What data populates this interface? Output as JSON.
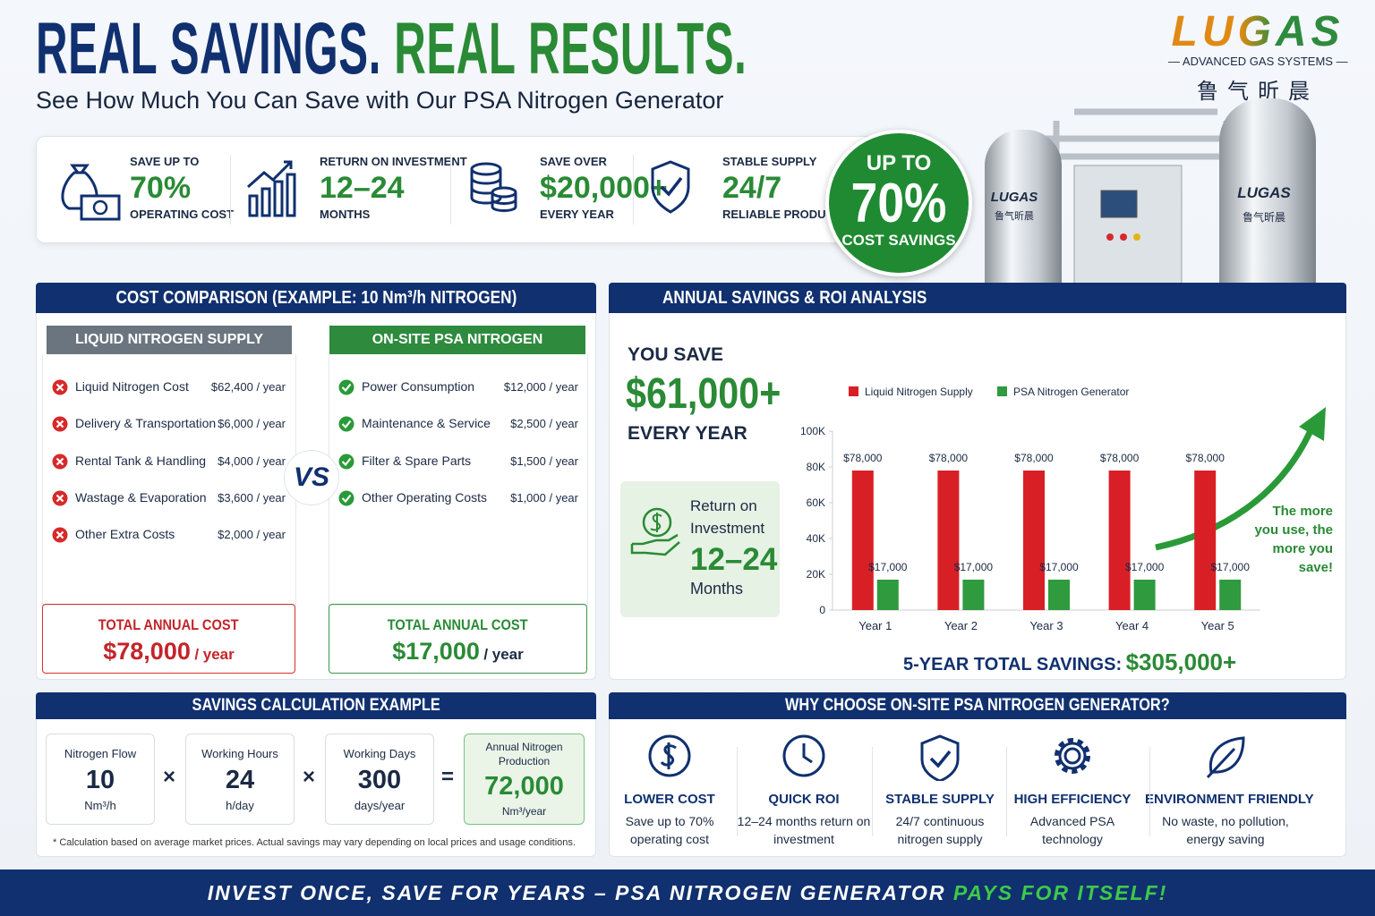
{
  "header": {
    "title_part1": "REAL SAVINGS.",
    "title_part2": "REAL RESULTS.",
    "subtitle": "See How Much You Can Save with Our PSA Nitrogen Generator"
  },
  "logo": {
    "name": "LUGAS",
    "tagline": "ADVANCED GAS SYSTEMS",
    "chinese": "鲁气昕晨"
  },
  "highlights": [
    {
      "label": "SAVE UP TO",
      "value": "70%",
      "caption": "OPERATING COST"
    },
    {
      "label": "RETURN ON INVESTMENT",
      "value": "12–24",
      "caption": "MONTHS"
    },
    {
      "label": "SAVE OVER",
      "value": "$20,000+",
      "caption": "EVERY YEAR"
    },
    {
      "label": "STABLE SUPPLY",
      "value": "24/7",
      "caption": "RELIABLE PRODUCTION"
    }
  ],
  "badge": {
    "line1": "UP TO",
    "value": "70%",
    "line2": "COST SAVINGS"
  },
  "machine": {
    "tank_brand": "LUGAS",
    "tank_brand_cn": "鲁气昕晨"
  },
  "cost_comparison": {
    "title": "COST COMPARISON (EXAMPLE: 10 Nm³/h NITROGEN)",
    "vs": "VS",
    "liquid": {
      "title": "LIQUID NITROGEN SUPPLY",
      "items": [
        {
          "name": "Liquid Nitrogen Cost",
          "cost": "$62,400 / year"
        },
        {
          "name": "Delivery & Transportation",
          "cost": "$6,000 / year"
        },
        {
          "name": "Rental Tank & Handling",
          "cost": "$4,000 / year"
        },
        {
          "name": "Wastage & Evaporation",
          "cost": "$3,600 / year"
        },
        {
          "name": "Other Extra Costs",
          "cost": "$2,000 / year"
        }
      ],
      "total_label": "TOTAL ANNUAL COST",
      "total": "$78,000",
      "total_unit": "/ year"
    },
    "psa": {
      "title": "ON-SITE PSA NITROGEN GENERATOR",
      "items": [
        {
          "name": "Power Consumption",
          "cost": "$12,000 / year"
        },
        {
          "name": "Maintenance & Service",
          "cost": "$2,500 / year"
        },
        {
          "name": "Filter & Spare Parts",
          "cost": "$1,500 / year"
        },
        {
          "name": "Other Operating Costs",
          "cost": "$1,000 / year"
        }
      ],
      "total_label": "TOTAL ANNUAL COST",
      "total": "$17,000",
      "total_unit": "/ year"
    }
  },
  "roi": {
    "title": "ANNUAL SAVINGS & ROI ANALYSIS",
    "you_save": "YOU SAVE",
    "amount": "$61,000+",
    "period": "EVERY YEAR",
    "roi_label": "Return on Investment",
    "roi_value": "12–24",
    "roi_unit": "Months",
    "arrow_note": "The more you use, the more you save!",
    "total_label": "5-YEAR TOTAL SAVINGS:",
    "total_value": "$305,000+"
  },
  "chart_data": {
    "type": "bar",
    "categories": [
      "Year 1",
      "Year 2",
      "Year 3",
      "Year 4",
      "Year 5"
    ],
    "series": [
      {
        "name": "Liquid Nitrogen Supply",
        "color": "#d91f26",
        "values": [
          78000,
          78000,
          78000,
          78000,
          78000
        ],
        "value_labels": [
          "$78,000",
          "$78,000",
          "$78,000",
          "$78,000",
          "$78,000"
        ]
      },
      {
        "name": "PSA Nitrogen Generator",
        "color": "#2f9a3e",
        "values": [
          17000,
          17000,
          17000,
          17000,
          17000
        ],
        "value_labels": [
          "$17,000",
          "$17,000",
          "$17,000",
          "$17,000",
          "$17,000"
        ]
      }
    ],
    "ylim": [
      0,
      100000
    ],
    "yticks": [
      0,
      {
        "value": 20000,
        "label": "20K"
      },
      {
        "value": 40000,
        "label": "40K"
      },
      {
        "value": 60000,
        "label": "60K"
      },
      {
        "value": 80000,
        "label": "80K"
      },
      {
        "value": 100000,
        "label": "100K"
      }
    ],
    "grid": false,
    "legend": "top"
  },
  "calculation": {
    "title": "SAVINGS CALCULATION EXAMPLE",
    "factors": [
      {
        "label": "Nitrogen Flow",
        "value": "10",
        "unit": "Nm³/h"
      },
      {
        "label": "Working Hours",
        "value": "24",
        "unit": "h/day"
      },
      {
        "label": "Working Days",
        "value": "300",
        "unit": "days/year"
      }
    ],
    "operators": [
      "×",
      "×",
      "="
    ],
    "result": {
      "label": "Annual Nitrogen Production",
      "value": "72,000",
      "unit": "Nm³/year"
    },
    "footnote": "* Calculation based on average market prices. Actual savings may vary depending on local prices and usage conditions."
  },
  "why": {
    "title": "WHY CHOOSE ON-SITE PSA NITROGEN GENERATOR?",
    "items": [
      {
        "title": "LOWER COST",
        "text": "Save up to 70% operating cost"
      },
      {
        "title": "QUICK ROI",
        "text": "12–24 months return on investment"
      },
      {
        "title": "STABLE SUPPLY",
        "text": "24/7 continuous nitrogen supply"
      },
      {
        "title": "HIGH EFFICIENCY",
        "text": "Advanced PSA technology"
      },
      {
        "title": "ENVIRONMENT FRIENDLY",
        "text": "No waste, no pollution, energy saving"
      }
    ]
  },
  "footer": {
    "part1": "INVEST ONCE, SAVE FOR YEARS – PSA NITROGEN GENERATOR",
    "part2": "PAYS FOR ITSELF!"
  }
}
